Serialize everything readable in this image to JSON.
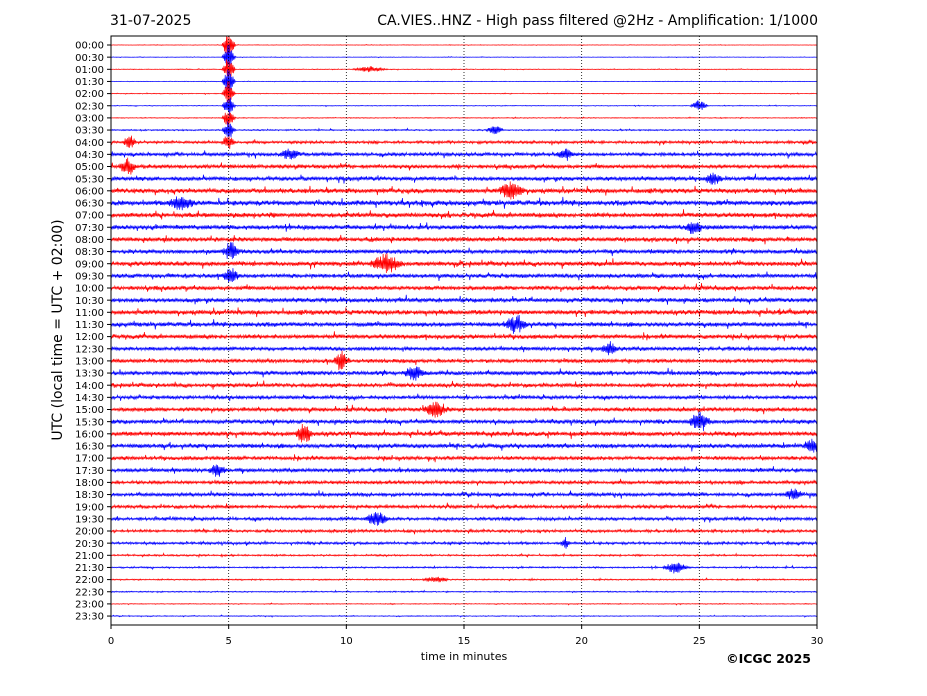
{
  "chart_data": {
    "type": "line",
    "date": "31-07-2025",
    "title": "CA.VIES..HNZ - High pass filtered @2Hz - Amplification: 1/1000",
    "xlabel": "time in minutes",
    "ylabel": "UTC (local time = UTC + 02:00)",
    "xlim": [
      0,
      30
    ],
    "x_ticks": [
      0,
      5,
      10,
      15,
      20,
      25,
      30
    ],
    "x_tick_labels": [
      "0",
      "5",
      "10",
      "15",
      "20",
      "25",
      "30"
    ],
    "vertical_gridlines": [
      5,
      10,
      15,
      20,
      25
    ],
    "row_labels": [
      "00:00",
      "00:30",
      "01:00",
      "01:30",
      "02:00",
      "02:30",
      "03:00",
      "03:30",
      "04:00",
      "04:30",
      "05:00",
      "05:30",
      "06:00",
      "06:30",
      "07:00",
      "07:30",
      "08:00",
      "08:30",
      "09:00",
      "09:30",
      "10:00",
      "10:30",
      "11:00",
      "11:30",
      "12:00",
      "12:30",
      "13:00",
      "13:30",
      "14:00",
      "14:30",
      "15:00",
      "15:30",
      "16:00",
      "16:30",
      "17:00",
      "17:30",
      "18:00",
      "18:30",
      "19:00",
      "19:30",
      "20:00",
      "20:30",
      "21:00",
      "21:30",
      "22:00",
      "22:30",
      "23:00",
      "23:30"
    ],
    "series_colors": [
      "#ff0000",
      "#0000ff"
    ],
    "noise_level": [
      0.3,
      0.3,
      0.4,
      0.3,
      0.4,
      0.4,
      0.5,
      0.8,
      1.6,
      2.0,
      2.2,
      2.4,
      2.8,
      3.0,
      2.8,
      2.6,
      2.6,
      2.5,
      2.6,
      2.4,
      2.4,
      2.6,
      2.8,
      2.6,
      2.5,
      2.2,
      2.2,
      2.4,
      2.2,
      2.0,
      2.3,
      2.4,
      2.6,
      2.6,
      2.2,
      2.2,
      2.0,
      2.0,
      1.9,
      1.8,
      1.6,
      1.5,
      1.0,
      0.9,
      0.8,
      0.7,
      0.5,
      0.5
    ],
    "events": [
      {
        "row": 0,
        "minute": 5.0,
        "amp": 16,
        "dur": 0.3
      },
      {
        "row": 1,
        "minute": 5.0,
        "amp": 14,
        "dur": 0.3
      },
      {
        "row": 2,
        "minute": 5.0,
        "amp": 14,
        "dur": 0.3
      },
      {
        "row": 2,
        "minute": 11.0,
        "amp": 3,
        "dur": 0.8
      },
      {
        "row": 3,
        "minute": 5.0,
        "amp": 14,
        "dur": 0.3
      },
      {
        "row": 4,
        "minute": 5.0,
        "amp": 14,
        "dur": 0.3
      },
      {
        "row": 5,
        "minute": 5.0,
        "amp": 12,
        "dur": 0.3
      },
      {
        "row": 5,
        "minute": 25.0,
        "amp": 6,
        "dur": 0.4
      },
      {
        "row": 6,
        "minute": 5.0,
        "amp": 10,
        "dur": 0.3
      },
      {
        "row": 7,
        "minute": 5.0,
        "amp": 10,
        "dur": 0.3
      },
      {
        "row": 7,
        "minute": 16.3,
        "amp": 5,
        "dur": 0.4
      },
      {
        "row": 8,
        "minute": 5.0,
        "amp": 8,
        "dur": 0.3
      },
      {
        "row": 8,
        "minute": 0.8,
        "amp": 8,
        "dur": 0.3
      },
      {
        "row": 9,
        "minute": 7.6,
        "amp": 6,
        "dur": 0.5
      },
      {
        "row": 9,
        "minute": 19.3,
        "amp": 5,
        "dur": 0.4
      },
      {
        "row": 10,
        "minute": 0.7,
        "amp": 8,
        "dur": 0.4
      },
      {
        "row": 11,
        "minute": 25.6,
        "amp": 6,
        "dur": 0.4
      },
      {
        "row": 12,
        "minute": 17.0,
        "amp": 9,
        "dur": 0.6
      },
      {
        "row": 13,
        "minute": 3.0,
        "amp": 8,
        "dur": 0.6
      },
      {
        "row": 15,
        "minute": 24.8,
        "amp": 8,
        "dur": 0.4
      },
      {
        "row": 17,
        "minute": 5.1,
        "amp": 10,
        "dur": 0.4
      },
      {
        "row": 18,
        "minute": 11.7,
        "amp": 9,
        "dur": 0.8
      },
      {
        "row": 19,
        "minute": 5.1,
        "amp": 8,
        "dur": 0.4
      },
      {
        "row": 23,
        "minute": 17.2,
        "amp": 8,
        "dur": 0.6
      },
      {
        "row": 25,
        "minute": 21.2,
        "amp": 7,
        "dur": 0.4
      },
      {
        "row": 26,
        "minute": 9.8,
        "amp": 9,
        "dur": 0.4
      },
      {
        "row": 27,
        "minute": 12.9,
        "amp": 8,
        "dur": 0.5
      },
      {
        "row": 30,
        "minute": 13.8,
        "amp": 8,
        "dur": 0.6
      },
      {
        "row": 31,
        "minute": 25.0,
        "amp": 9,
        "dur": 0.5
      },
      {
        "row": 32,
        "minute": 8.2,
        "amp": 11,
        "dur": 0.4
      },
      {
        "row": 33,
        "minute": 29.8,
        "amp": 7,
        "dur": 0.4
      },
      {
        "row": 35,
        "minute": 4.5,
        "amp": 6,
        "dur": 0.4
      },
      {
        "row": 37,
        "minute": 29.0,
        "amp": 6,
        "dur": 0.4
      },
      {
        "row": 39,
        "minute": 11.3,
        "amp": 7,
        "dur": 0.6
      },
      {
        "row": 41,
        "minute": 19.3,
        "amp": 6,
        "dur": 0.2
      },
      {
        "row": 43,
        "minute": 24.0,
        "amp": 6,
        "dur": 0.6
      },
      {
        "row": 44,
        "minute": 13.8,
        "amp": 3,
        "dur": 0.6
      }
    ]
  },
  "copyright": "©ICGC 2025"
}
